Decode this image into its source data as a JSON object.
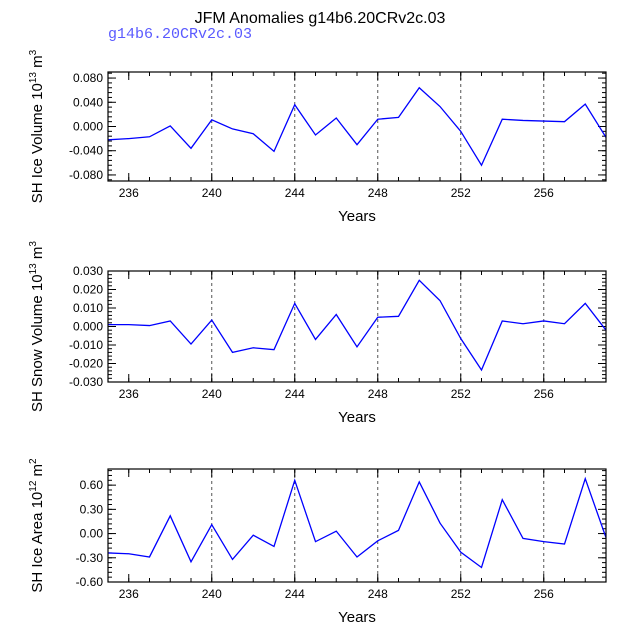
{
  "title": "JFM Anomalies g14b6.20CRv2c.03",
  "subtitle": "g14b6.20CRv2c.03",
  "colors": {
    "line": "#0000ff",
    "subtitle": "#5a5aff",
    "axis": "#000000",
    "grid": "#555555"
  },
  "chart_data": [
    {
      "type": "line",
      "ylabel": "SH Ice Volume",
      "yunit_power": "13",
      "yunit_suffix": "m",
      "yunit_sup2": "3",
      "xlabel": "Years",
      "xlim": [
        235,
        259
      ],
      "ylim": [
        -0.09,
        0.09
      ],
      "xticks": [
        236,
        240,
        244,
        248,
        252,
        256
      ],
      "yticks": [
        -0.08,
        -0.04,
        0.0,
        0.04,
        0.08
      ],
      "ytick_labels": [
        "-0.080",
        "-0.040",
        "0.000",
        "0.040",
        "0.080"
      ],
      "grid_x": [
        240,
        244,
        248,
        252,
        256
      ],
      "x": [
        235,
        236,
        237,
        238,
        239,
        240,
        241,
        242,
        243,
        244,
        245,
        246,
        247,
        248,
        249,
        250,
        251,
        252,
        253,
        254,
        255,
        256,
        257,
        258,
        259
      ],
      "values": [
        -0.022,
        -0.02,
        -0.017,
        0.001,
        -0.036,
        0.011,
        -0.004,
        -0.012,
        -0.041,
        0.036,
        -0.014,
        0.014,
        -0.03,
        0.012,
        0.015,
        0.064,
        0.033,
        -0.008,
        -0.064,
        0.012,
        0.01,
        0.009,
        0.008,
        0.037,
        -0.018
      ]
    },
    {
      "type": "line",
      "ylabel": "SH Snow Volume",
      "yunit_power": "13",
      "yunit_suffix": "m",
      "yunit_sup2": "3",
      "xlabel": "Years",
      "xlim": [
        235,
        259
      ],
      "ylim": [
        -0.03,
        0.03
      ],
      "xticks": [
        236,
        240,
        244,
        248,
        252,
        256
      ],
      "yticks": [
        -0.03,
        -0.02,
        -0.01,
        0.0,
        0.01,
        0.02,
        0.03
      ],
      "ytick_labels": [
        "-0.030",
        "-0.020",
        "-0.010",
        "0.000",
        "0.010",
        "0.020",
        "0.030"
      ],
      "grid_x": [
        240,
        244,
        248,
        252,
        256
      ],
      "x": [
        235,
        236,
        237,
        238,
        239,
        240,
        241,
        242,
        243,
        244,
        245,
        246,
        247,
        248,
        249,
        250,
        251,
        252,
        253,
        254,
        255,
        256,
        257,
        258,
        259
      ],
      "values": [
        0.001,
        0.001,
        0.0005,
        0.003,
        -0.0095,
        0.0035,
        -0.014,
        -0.0115,
        -0.0125,
        0.0125,
        -0.007,
        0.0065,
        -0.011,
        0.005,
        0.0055,
        0.025,
        0.014,
        -0.0065,
        -0.0235,
        0.003,
        0.0015,
        0.003,
        0.0015,
        0.0125,
        -0.002
      ]
    },
    {
      "type": "line",
      "ylabel": "SH Ice Area",
      "yunit_power": "12",
      "yunit_suffix": "m",
      "yunit_sup2": "2",
      "xlabel": "Years",
      "xlim": [
        235,
        259
      ],
      "ylim": [
        -0.6,
        0.8
      ],
      "xticks": [
        236,
        240,
        244,
        248,
        252,
        256
      ],
      "yticks": [
        -0.6,
        -0.3,
        0.0,
        0.3,
        0.6
      ],
      "ytick_labels": [
        "-0.60",
        "-0.30",
        "0.00",
        "0.30",
        "0.60"
      ],
      "grid_x": [
        240,
        244,
        248,
        252,
        256
      ],
      "x": [
        235,
        236,
        237,
        238,
        239,
        240,
        241,
        242,
        243,
        244,
        245,
        246,
        247,
        248,
        249,
        250,
        251,
        252,
        253,
        254,
        255,
        256,
        257,
        258,
        259
      ],
      "values": [
        -0.24,
        -0.25,
        -0.29,
        0.22,
        -0.35,
        0.11,
        -0.32,
        -0.02,
        -0.16,
        0.66,
        -0.1,
        0.03,
        -0.29,
        -0.09,
        0.04,
        0.64,
        0.13,
        -0.23,
        -0.42,
        0.42,
        -0.06,
        -0.1,
        -0.13,
        0.68,
        -0.05
      ]
    }
  ]
}
